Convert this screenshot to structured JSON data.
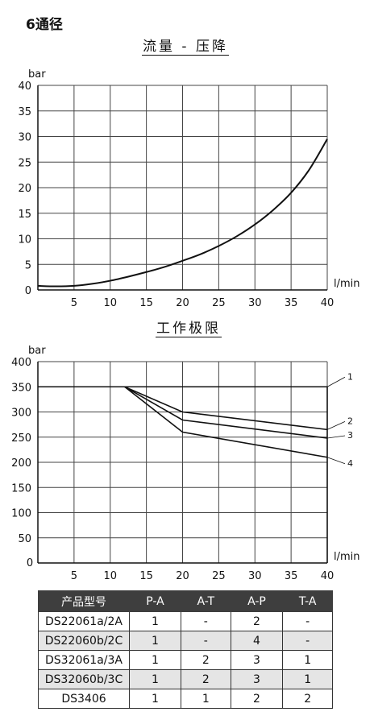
{
  "heading": "6通径",
  "chart_data": [
    {
      "type": "line",
      "title": "流量 - 压降",
      "ylabel": "bar",
      "xlabel": "l/min",
      "xlim": [
        0,
        40
      ],
      "ylim": [
        0,
        40
      ],
      "x_ticks": [
        "5",
        "10",
        "15",
        "20",
        "25",
        "30",
        "35",
        "40"
      ],
      "y_ticks": [
        "0",
        "5",
        "10",
        "15",
        "20",
        "25",
        "30",
        "35",
        "40"
      ],
      "grid": true,
      "series": [
        {
          "x": [
            0,
            2.5,
            5,
            7.5,
            10,
            12.5,
            15,
            17.5,
            20,
            22.5,
            25,
            27.5,
            30,
            32.5,
            35,
            37.5,
            40
          ],
          "values": [
            0.8,
            0.7,
            0.8,
            1.2,
            1.8,
            2.6,
            3.5,
            4.5,
            5.7,
            7.0,
            8.6,
            10.5,
            12.8,
            15.6,
            19.0,
            23.5,
            29.5
          ]
        }
      ]
    },
    {
      "type": "line",
      "title": "工作极限",
      "ylabel": "bar",
      "xlabel": "l/min",
      "xlim": [
        0,
        40
      ],
      "ylim": [
        0,
        400
      ],
      "x_ticks": [
        "0",
        "5",
        "10",
        "15",
        "20",
        "25",
        "30",
        "35",
        "40"
      ],
      "y_ticks": [
        "50",
        "100",
        "150",
        "200",
        "250",
        "300",
        "350",
        "400"
      ],
      "grid": true,
      "series": [
        {
          "name": "1",
          "x": [
            0,
            12,
            40
          ],
          "values": [
            350,
            350,
            350
          ]
        },
        {
          "name": "2",
          "x": [
            0,
            12,
            20,
            40
          ],
          "values": [
            350,
            350,
            300,
            265
          ]
        },
        {
          "name": "3",
          "x": [
            0,
            12,
            20,
            40
          ],
          "values": [
            350,
            350,
            284,
            248
          ]
        },
        {
          "name": "4",
          "x": [
            0,
            12,
            20,
            40
          ],
          "values": [
            350,
            350,
            260,
            210
          ]
        }
      ]
    }
  ],
  "table": {
    "headers": [
      "产品型号",
      "P-A",
      "A-T",
      "A-P",
      "T-A"
    ],
    "rows": [
      [
        "DS22061a/2A",
        "1",
        "-",
        "2",
        "-"
      ],
      [
        "DS22060b/2C",
        "1",
        "-",
        "4",
        "-"
      ],
      [
        "DS32061a/3A",
        "1",
        "2",
        "3",
        "1"
      ],
      [
        "DS32060b/3C",
        "1",
        "2",
        "3",
        "1"
      ],
      [
        "DS3406",
        "1",
        "1",
        "2",
        "2"
      ]
    ]
  }
}
